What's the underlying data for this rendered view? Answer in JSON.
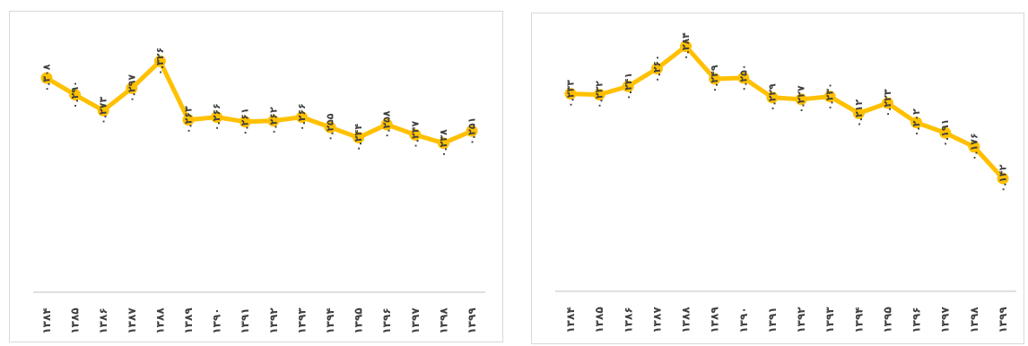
{
  "colors": {
    "line": "#FFC000",
    "label": "#404040",
    "axis": "#bfbfbf"
  },
  "chart_data": [
    {
      "type": "line",
      "categories": [
        "۱۳۸۴",
        "۱۳۸۵",
        "۱۳۸۶",
        "۱۳۸۷",
        "۱۳۸۸",
        "۱۳۸۹",
        "۱۳۹۰",
        "۱۳۹۱",
        "۱۳۹۲",
        "۱۳۹۳",
        "۱۳۹۴",
        "۱۳۹۵",
        "۱۳۹۶",
        "۱۳۹۷",
        "۱۳۹۸",
        "۱۳۹۹"
      ],
      "values": [
        0.308,
        0.29,
        0.273,
        0.297,
        0.326,
        0.263,
        0.266,
        0.261,
        0.262,
        0.266,
        0.255,
        0.244,
        0.258,
        0.247,
        0.238,
        0.251
      ],
      "data_labels": [
        "۰.۳۰۸",
        "۰.۲۹۰",
        "۰.۲۷۳",
        "۰.۲۹۷",
        "۰.۳۲۶",
        "۰.۲۶۳",
        "۰.۲۶۶",
        "۰.۲۶۱",
        "۰.۲۶۲",
        "۰.۲۶۶",
        "۰.۲۵۵",
        "۰.۲۴۴",
        "۰.۲۵۸",
        "۰.۲۴۷",
        "۰.۲۳۸",
        "۰.۲۵۱"
      ],
      "ylim": [
        0.1,
        0.36
      ],
      "grid": false,
      "legend": "none"
    },
    {
      "type": "line",
      "categories": [
        "۱۳۸۴",
        "۱۳۸۵",
        "۱۳۸۶",
        "۱۳۸۷",
        "۱۳۸۸",
        "۱۳۸۹",
        "۱۳۹۰",
        "۱۳۹۱",
        "۱۳۹۲",
        "۱۳۹۳",
        "۱۳۹۴",
        "۱۳۹۵",
        "۱۳۹۶",
        "۱۳۹۷",
        "۱۳۹۸",
        "۱۳۹۹"
      ],
      "values": [
        0.233,
        0.232,
        0.241,
        0.26,
        0.284,
        0.249,
        0.25,
        0.229,
        0.227,
        0.23,
        0.212,
        0.223,
        0.202,
        0.191,
        0.176,
        0.142
      ],
      "data_labels": [
        "۰.۲۳۳",
        "۰.۲۳۲",
        "۰.۲۴۱",
        "۰.۲۶۰",
        "۰.۲۸۴",
        "۰.۲۴۹",
        "۰.۲۵۰",
        "۰.۲۲۹",
        "۰.۲۲۷",
        "۰.۲۳۰",
        "۰.۲۱۲",
        "۰.۲۲۳",
        "۰.۲۰۲",
        "۰.۱۹۱",
        "۰.۱۷۶",
        "۰.۱۴۲"
      ],
      "ylim": [
        0.04,
        0.3
      ],
      "grid": false,
      "legend": "none"
    }
  ]
}
